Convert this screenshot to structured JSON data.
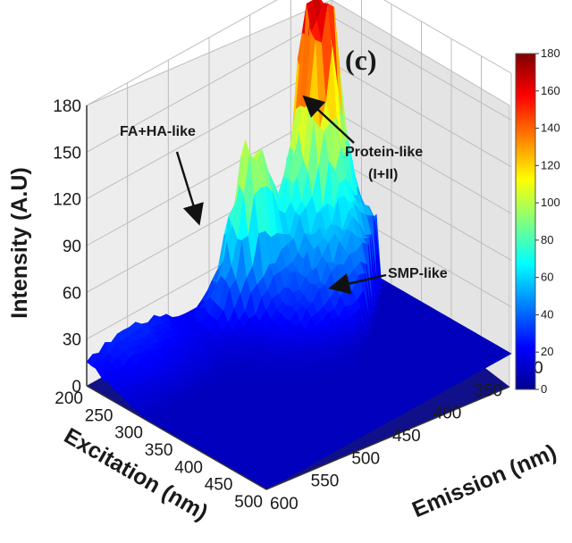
{
  "chart_data": {
    "type": "surface3d",
    "panel_label": "(c)",
    "zlabel": "Intensity (A.U)",
    "xlabel": "Excitation (nm)",
    "ylabel": "Emission (nm)",
    "zlim": [
      0,
      180
    ],
    "z_ticks": [
      "0",
      "30",
      "60",
      "90",
      "120",
      "150",
      "180"
    ],
    "excitation_ticks": [
      "200",
      "250",
      "300",
      "350",
      "400",
      "450",
      "500"
    ],
    "emission_ticks": [
      "300",
      "350",
      "400",
      "450",
      "500",
      "550",
      "600"
    ],
    "colorbar": {
      "colormap": "jet",
      "range": [
        0,
        180
      ],
      "ticks": [
        "0",
        "20",
        "40",
        "60",
        "80",
        "100",
        "120",
        "140",
        "160",
        "180"
      ]
    },
    "annotations": [
      {
        "text": "FA+HA-like",
        "excitation": 230,
        "emission": 420,
        "intensity": 95
      },
      {
        "text": "Protein-like",
        "line2": "(I+II)",
        "excitation": 230,
        "emission": 340,
        "intensity": 180
      },
      {
        "text": "SMP-like",
        "excitation": 280,
        "emission": 350,
        "intensity": 55
      }
    ],
    "peaks": [
      {
        "name": "Protein-like (I+II)",
        "excitation": 230,
        "emission": 340,
        "intensity": 180
      },
      {
        "name": "FA+HA-like",
        "excitation": 230,
        "emission": 420,
        "intensity": 95
      },
      {
        "name": "SMP-like",
        "excitation": 280,
        "emission": 350,
        "intensity": 55
      }
    ],
    "grid": true
  }
}
